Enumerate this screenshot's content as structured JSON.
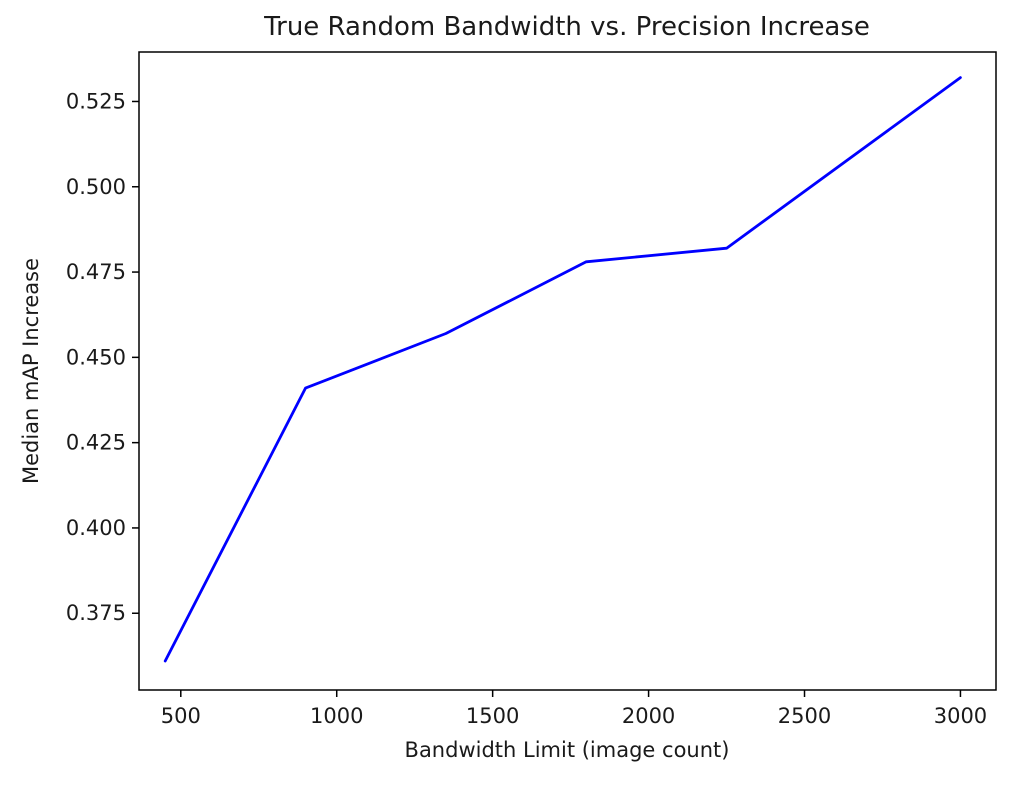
{
  "chart_data": {
    "type": "line",
    "title": "True Random Bandwidth vs. Precision Increase",
    "xlabel": "Bandwidth Limit (image count)",
    "ylabel": "Median mAP Increase",
    "xlim": [
      366,
      3114
    ],
    "ylim": [
      0.3525,
      0.5395
    ],
    "x_ticks": [
      500,
      1000,
      1500,
      2000,
      2500,
      3000
    ],
    "x_tick_labels": [
      "500",
      "1000",
      "1500",
      "2000",
      "2500",
      "3000"
    ],
    "y_ticks": [
      0.375,
      0.4,
      0.425,
      0.45,
      0.475,
      0.5,
      0.525
    ],
    "y_tick_labels": [
      "0.375",
      "0.400",
      "0.425",
      "0.450",
      "0.475",
      "0.500",
      "0.525"
    ],
    "grid": false,
    "series": [
      {
        "color": "#0000ff",
        "x": [
          450,
          900,
          1350,
          1800,
          2250,
          3000
        ],
        "y": [
          0.361,
          0.441,
          0.457,
          0.478,
          0.482,
          0.532
        ]
      }
    ]
  }
}
